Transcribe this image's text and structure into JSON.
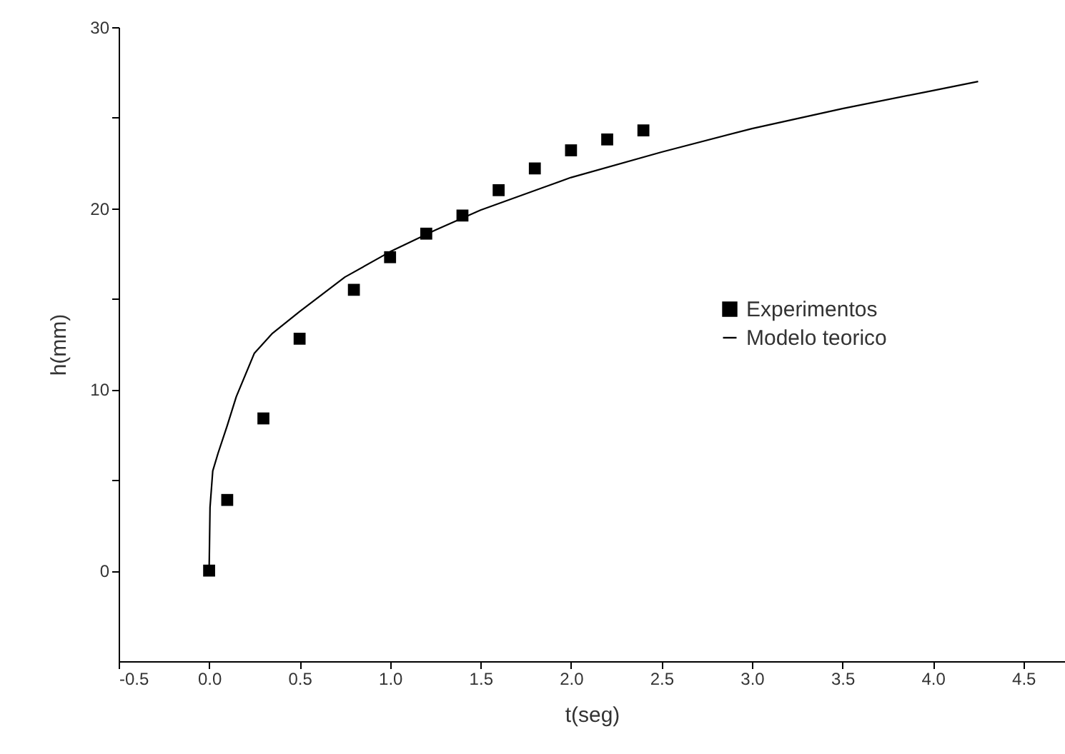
{
  "chart_data": {
    "type": "scatter",
    "xlabel": "t(seg)",
    "ylabel": "h(mm)",
    "xlim": [
      -0.5,
      4.73
    ],
    "ylim": [
      -5,
      30
    ],
    "xticks": [
      {
        "value": -0.5,
        "label": "-0.5"
      },
      {
        "value": 0,
        "label": "0.0"
      },
      {
        "value": 0.5,
        "label": "0.5"
      },
      {
        "value": 1,
        "label": "1.0"
      },
      {
        "value": 1.5,
        "label": "1.5"
      },
      {
        "value": 2,
        "label": "2.0"
      },
      {
        "value": 2.5,
        "label": "2.5"
      },
      {
        "value": 3,
        "label": "3.0"
      },
      {
        "value": 3.5,
        "label": "3.5"
      },
      {
        "value": 4,
        "label": "4.0"
      },
      {
        "value": 4.5,
        "label": "4.5"
      }
    ],
    "yticks": [
      0,
      {
        "value": 5,
        "label": null
      },
      10,
      {
        "value": 15,
        "label": null
      },
      20,
      {
        "value": 25,
        "label": null
      },
      30
    ],
    "grid": false,
    "legend": "right",
    "series": [
      {
        "name": "Experimentos",
        "marker": "square",
        "color": "#000000",
        "x": [
          0,
          0.1,
          0.3,
          0.5,
          0.8,
          1.0,
          1.2,
          1.4,
          1.6,
          1.8,
          2.0,
          2.2,
          2.4
        ],
        "values": [
          0,
          3.9,
          8.4,
          12.8,
          15.5,
          17.3,
          18.6,
          19.6,
          21.0,
          22.2,
          23.2,
          23.8,
          24.3
        ]
      },
      {
        "name": "Modelo teorico",
        "type": "line",
        "color": "#000000",
        "line_style": "solid",
        "x": [
          0,
          0.005,
          0.02,
          0.05,
          0.1,
          0.15,
          0.25,
          0.35,
          0.5,
          0.75,
          1.0,
          1.25,
          1.5,
          2.0,
          2.5,
          3.0,
          3.5,
          4.0,
          4.25
        ],
        "values": [
          0,
          3.5,
          5.5,
          6.5,
          8.0,
          9.6,
          12.0,
          13.1,
          14.3,
          16.2,
          17.6,
          18.8,
          19.9,
          21.7,
          23.1,
          24.4,
          25.5,
          26.5,
          27.0
        ]
      }
    ]
  }
}
